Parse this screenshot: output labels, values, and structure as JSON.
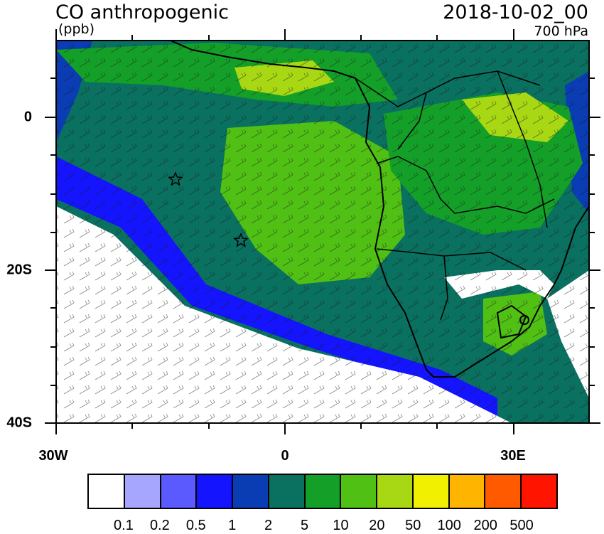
{
  "title": "CO anthropogenic",
  "units": "(ppb)",
  "datetime": "2018-10-02_00",
  "level": "700 hPa",
  "lat_labels": [
    "0",
    "20S",
    "40S"
  ],
  "lon_labels": [
    "30W",
    "0",
    "30E"
  ],
  "colorbar": {
    "colors": [
      "#ffffff",
      "#a6a6ff",
      "#5a5aff",
      "#1414ff",
      "#0a3cb4",
      "#0a7060",
      "#14a028",
      "#50c014",
      "#a8d814",
      "#f0f000",
      "#ffb400",
      "#ff5a00",
      "#ff1400"
    ],
    "labels": [
      "0.1",
      "0.2",
      "0.5",
      "1",
      "2",
      "5",
      "10",
      "20",
      "50",
      "100",
      "200",
      "500"
    ]
  }
}
